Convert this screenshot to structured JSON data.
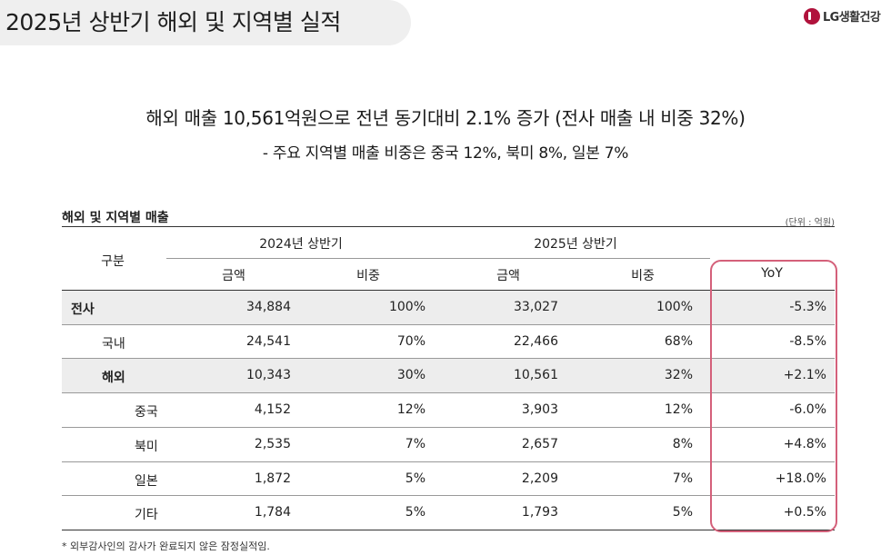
{
  "header": {
    "title": "2025년 상반기 해외 및 지역별 실적",
    "logo_text": "LG생활건강"
  },
  "summary": {
    "headline": "해외 매출 10,561억원으로 전년 동기대비 2.1% 증가 (전사 매출 내 비중 32%)",
    "subline": "- 주요 지역별 매출 비중은 중국 12%, 북미 8%, 일본 7%"
  },
  "table": {
    "caption": "해외 및 지역별 매출",
    "unit": "(단위 : 억원)",
    "col_category": "구분",
    "period_2024": "2024년 상반기",
    "period_2025": "2025년 상반기",
    "col_amount_2024": "금액",
    "col_share_2024": "비중",
    "col_amount_2025": "금액",
    "col_share_2025": "비중",
    "col_yoy": "YoY",
    "rows": [
      {
        "label": "전사",
        "a24": "34,884",
        "s24": "100%",
        "a25": "33,027",
        "s25": "100%",
        "yoy": "-5.3%"
      },
      {
        "label": "국내",
        "a24": "24,541",
        "s24": "70%",
        "a25": "22,466",
        "s25": "68%",
        "yoy": "-8.5%"
      },
      {
        "label": "해외",
        "a24": "10,343",
        "s24": "30%",
        "a25": "10,561",
        "s25": "32%",
        "yoy": "+2.1%"
      },
      {
        "label": "중국",
        "a24": "4,152",
        "s24": "12%",
        "a25": "3,903",
        "s25": "12%",
        "yoy": "-6.0%"
      },
      {
        "label": "북미",
        "a24": "2,535",
        "s24": "7%",
        "a25": "2,657",
        "s25": "8%",
        "yoy": "+4.8%"
      },
      {
        "label": "일본",
        "a24": "1,872",
        "s24": "5%",
        "a25": "2,209",
        "s25": "7%",
        "yoy": "+18.0%"
      },
      {
        "label": "기타",
        "a24": "1,784",
        "s24": "5%",
        "a25": "1,793",
        "s25": "5%",
        "yoy": "+0.5%"
      }
    ]
  },
  "footnote": "* 외부감사인의 감사가 완료되지 않은 잠정실적임.",
  "colors": {
    "title_bg": "#efefef",
    "highlight_row_bg": "#ededed",
    "yoy_outline": "#d4607a",
    "logo_red": "#b0123c"
  }
}
